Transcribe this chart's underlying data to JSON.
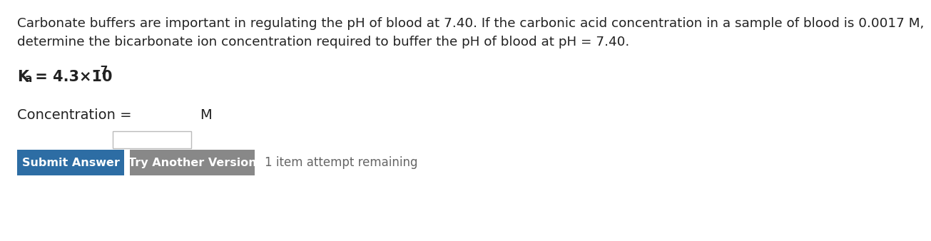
{
  "bg_color": "#ffffff",
  "line1": "Carbonate buffers are important in regulating the pH of blood at 7.40. If the carbonic acid concentration in a sample of blood is 0.0017 M,",
  "line2": "determine the bicarbonate ion concentration required to buffer the pH of blood at pH = 7.40.",
  "conc_label": "Concentration = ",
  "conc_unit": "M",
  "btn1_text": "Submit Answer",
  "btn1_color": "#2d6da4",
  "btn2_text": "Try Another Version",
  "btn2_color": "#888888",
  "attempt_text": "1 item attempt remaining",
  "text_color": "#222222",
  "body_fontsize": 13.2,
  "ka_fontsize": 15,
  "ka_sub_fontsize": 11,
  "ka_sup_fontsize": 11,
  "conc_fontsize": 14,
  "btn_fontsize": 11.5,
  "attempt_fontsize": 12,
  "attempt_color": "#666666"
}
